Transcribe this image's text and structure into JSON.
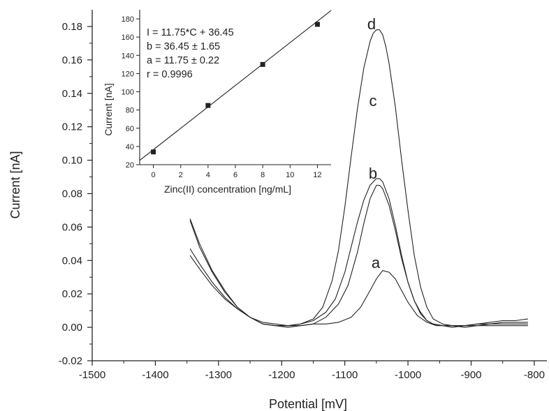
{
  "chart_data": [
    {
      "type": "line",
      "title": "",
      "xlabel": "Potential [mV]",
      "ylabel": "Current [nA]",
      "xlim": [
        -1500,
        -780
      ],
      "ylim": [
        -0.02,
        0.19
      ],
      "x_ticks": [
        -1500,
        -1400,
        -1300,
        -1200,
        -1100,
        -1000,
        -900,
        -800
      ],
      "x_tick_labels": [
        "-1500",
        "-1400",
        "-1300",
        "-1200",
        "-1100",
        "-1000",
        "-900",
        "-800"
      ],
      "y_ticks": [
        -0.02,
        0.0,
        0.02,
        0.04,
        0.06,
        0.08,
        0.1,
        0.12,
        0.14,
        0.16,
        0.18
      ],
      "y_tick_labels": [
        "-0.02",
        "0.00",
        "0.02",
        "0.04",
        "0.06",
        "0.08",
        "0.10",
        "0.12",
        "0.14",
        "0.16",
        "0.18"
      ],
      "grid": false,
      "series": [
        {
          "name": "a",
          "x": [
            -1345,
            -1330,
            -1310,
            -1290,
            -1270,
            -1250,
            -1230,
            -1210,
            -1190,
            -1170,
            -1150,
            -1130,
            -1110,
            -1090,
            -1075,
            -1060,
            -1050,
            -1040,
            -1030,
            -1020,
            -1010,
            -1000,
            -985,
            -970,
            -955,
            -940,
            -925,
            -910,
            -890,
            -870,
            -850,
            -830,
            -810
          ],
          "y": [
            0.043,
            0.035,
            0.025,
            0.017,
            0.011,
            0.006,
            0.003,
            0.002,
            0.001,
            0.001,
            0.002,
            0.002,
            0.003,
            0.006,
            0.012,
            0.022,
            0.029,
            0.034,
            0.033,
            0.029,
            0.022,
            0.015,
            0.007,
            0.003,
            0.001,
            0.001,
            0.001,
            0.001,
            0.002,
            0.003,
            0.004,
            0.004,
            0.005
          ]
        },
        {
          "name": "b",
          "x": [
            -1345,
            -1330,
            -1310,
            -1290,
            -1270,
            -1250,
            -1230,
            -1210,
            -1190,
            -1170,
            -1150,
            -1130,
            -1110,
            -1095,
            -1080,
            -1070,
            -1060,
            -1050,
            -1045,
            -1040,
            -1030,
            -1020,
            -1010,
            -1000,
            -990,
            -980,
            -970,
            -960,
            -945,
            -930,
            -910,
            -890,
            -870,
            -850,
            -830,
            -810
          ],
          "y": [
            0.047,
            0.038,
            0.027,
            0.018,
            0.011,
            0.006,
            0.002,
            0.001,
            0.0,
            0.001,
            0.002,
            0.006,
            0.014,
            0.025,
            0.045,
            0.062,
            0.077,
            0.085,
            0.085,
            0.083,
            0.073,
            0.058,
            0.041,
            0.027,
            0.016,
            0.009,
            0.004,
            0.002,
            0.001,
            0.001,
            0.001,
            0.002,
            0.002,
            0.003,
            0.003,
            0.003
          ]
        },
        {
          "name": "c",
          "x": [
            -1345,
            -1330,
            -1310,
            -1290,
            -1270,
            -1250,
            -1230,
            -1210,
            -1190,
            -1170,
            -1150,
            -1130,
            -1115,
            -1100,
            -1090,
            -1080,
            -1070,
            -1060,
            -1050,
            -1045,
            -1040,
            -1030,
            -1020,
            -1010,
            -1000,
            -990,
            -980,
            -970,
            -960,
            -945,
            -930,
            -910,
            -890,
            -870,
            -850,
            -830,
            -810
          ],
          "y": [
            0.064,
            0.048,
            0.033,
            0.021,
            0.012,
            0.006,
            0.002,
            0.001,
            0.001,
            0.002,
            0.004,
            0.009,
            0.017,
            0.033,
            0.048,
            0.063,
            0.076,
            0.085,
            0.089,
            0.089,
            0.087,
            0.077,
            0.061,
            0.043,
            0.027,
            0.016,
            0.008,
            0.004,
            0.002,
            0.001,
            0.0,
            0.001,
            0.001,
            0.002,
            0.002,
            0.002,
            0.002
          ]
        },
        {
          "name": "d",
          "x": [
            -1345,
            -1330,
            -1310,
            -1290,
            -1270,
            -1250,
            -1230,
            -1210,
            -1190,
            -1170,
            -1150,
            -1135,
            -1120,
            -1110,
            -1100,
            -1090,
            -1080,
            -1070,
            -1060,
            -1055,
            -1050,
            -1045,
            -1040,
            -1035,
            -1030,
            -1020,
            -1010,
            -1000,
            -990,
            -980,
            -970,
            -960,
            -945,
            -930,
            -910,
            -890,
            -870,
            -850,
            -830,
            -810
          ],
          "y": [
            0.065,
            0.05,
            0.034,
            0.022,
            0.012,
            0.006,
            0.002,
            0.001,
            0.001,
            0.002,
            0.005,
            0.012,
            0.028,
            0.046,
            0.072,
            0.102,
            0.131,
            0.155,
            0.171,
            0.176,
            0.178,
            0.178,
            0.175,
            0.168,
            0.158,
            0.132,
            0.1,
            0.07,
            0.043,
            0.024,
            0.012,
            0.005,
            0.002,
            0.001,
            0.0,
            0.001,
            0.001,
            0.001,
            0.001,
            0.001
          ]
        }
      ]
    },
    {
      "type": "scatter",
      "title": "",
      "xlabel": "Zinc(II) concentration [ng/mL]",
      "ylabel": "Current [nA]",
      "xlim": [
        -1,
        13
      ],
      "ylim": [
        20,
        190
      ],
      "x_ticks": [
        0,
        2,
        4,
        6,
        8,
        10,
        12
      ],
      "x_tick_labels": [
        "0",
        "2",
        "4",
        "6",
        "8",
        "10",
        "12"
      ],
      "y_ticks": [
        20,
        40,
        60,
        80,
        100,
        120,
        140,
        160,
        180
      ],
      "y_tick_labels": [
        "20",
        "40",
        "60",
        "80",
        "100",
        "120",
        "140",
        "160",
        "180"
      ],
      "grid": false,
      "points": {
        "x": [
          0,
          4,
          8,
          12
        ],
        "y": [
          34,
          85,
          130,
          174
        ]
      },
      "fit": {
        "x": [
          -1,
          13
        ],
        "y": [
          24.7,
          189.2
        ]
      },
      "annotations": [
        "I = 11.75*C + 36.45",
        "b = 36.45 ± 1.65",
        "a = 11.75 ± 0.22",
        "r = 0.9996"
      ]
    }
  ],
  "curve_labels": [
    "a",
    "b",
    "c",
    "d"
  ]
}
